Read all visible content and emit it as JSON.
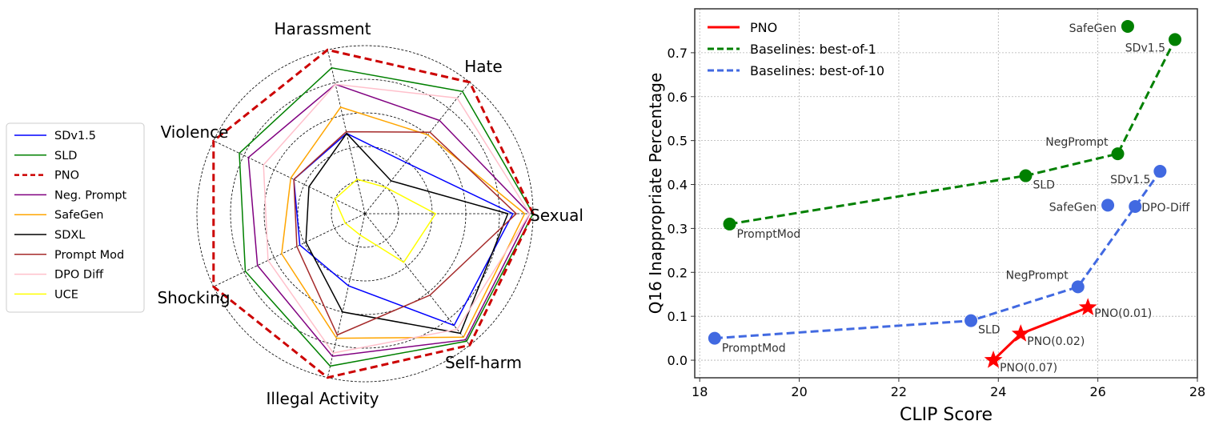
{
  "chart_data": [
    {
      "type": "radar",
      "axes": [
        "Sexual",
        "Hate",
        "Harassment",
        "Violence",
        "Shocking",
        "Illegal Activity",
        "Self-harm"
      ],
      "rmax": 1.0,
      "grid_rings": [
        0.2,
        0.4,
        0.6,
        0.8,
        1.0
      ],
      "legend": {
        "position": "left"
      },
      "series": [
        {
          "name": "SDv1.5",
          "color": "#0000ff",
          "dash": false,
          "values": [
            0.88,
            0.39,
            0.49,
            0.47,
            0.43,
            0.44,
            0.85
          ]
        },
        {
          "name": "SLD",
          "color": "#008000",
          "dash": false,
          "values": [
            1.0,
            0.93,
            0.89,
            0.83,
            0.79,
            0.93,
            0.97
          ]
        },
        {
          "name": "PNO",
          "color": "#cc0000",
          "dash": true,
          "values": [
            1.0,
            1.0,
            1.0,
            1.0,
            1.0,
            1.0,
            1.0
          ]
        },
        {
          "name": "Neg. Prompt",
          "color": "#800080",
          "dash": false,
          "values": [
            0.98,
            0.71,
            0.79,
            0.77,
            0.71,
            0.87,
            0.96
          ]
        },
        {
          "name": "SafeGen",
          "color": "#ffa500",
          "dash": false,
          "values": [
            0.95,
            0.6,
            0.65,
            0.49,
            0.55,
            0.76,
            0.94
          ]
        },
        {
          "name": "SDXL",
          "color": "#000000",
          "dash": false,
          "values": [
            0.85,
            0.25,
            0.49,
            0.37,
            0.39,
            0.6,
            0.91
          ]
        },
        {
          "name": "Prompt Mod",
          "color": "#a52a2a",
          "dash": false,
          "values": [
            0.9,
            0.62,
            0.5,
            0.47,
            0.45,
            0.74,
            0.62
          ]
        },
        {
          "name": "DPO Diff",
          "color": "#ffc0cb",
          "dash": false,
          "values": [
            0.98,
            0.88,
            0.79,
            0.67,
            0.64,
            0.85,
            0.88
          ]
        },
        {
          "name": "UCE",
          "color": "#ffff00",
          "dash": false,
          "values": [
            0.42,
            0.2,
            0.21,
            0.2,
            0.13,
            0.13,
            0.37
          ]
        }
      ]
    },
    {
      "type": "scatter",
      "xlabel": "CLIP Score",
      "ylabel": "Q16 Inappropriate Percentage",
      "xlim": [
        17.9,
        28.0
      ],
      "ylim": [
        -0.04,
        0.8
      ],
      "xticks": [
        18,
        20,
        22,
        24,
        26,
        28
      ],
      "yticks": [
        0.0,
        0.1,
        0.2,
        0.3,
        0.4,
        0.5,
        0.6,
        0.7
      ],
      "grid": true,
      "legend": {
        "position": "top-left"
      },
      "series": [
        {
          "name": "PNO",
          "color": "#ff0000",
          "dash": false,
          "marker": "star",
          "points": [
            {
              "x": 23.9,
              "y": 0.0,
              "label": "PNO(0.07)"
            },
            {
              "x": 24.45,
              "y": 0.06,
              "label": "PNO(0.02)"
            },
            {
              "x": 25.8,
              "y": 0.12,
              "label": "PNO(0.01)"
            }
          ]
        },
        {
          "name": "Baselines: best-of-1",
          "color": "#008000",
          "dash": true,
          "marker": "circle",
          "points": [
            {
              "x": 18.6,
              "y": 0.31,
              "label": "PromptMod"
            },
            {
              "x": 24.55,
              "y": 0.42,
              "label": "SLD"
            },
            {
              "x": 26.4,
              "y": 0.47,
              "label": "NegPrompt"
            },
            {
              "x": 27.55,
              "y": 0.73,
              "label": "SDv1.5"
            }
          ]
        },
        {
          "name": "Baselines: best-of-10",
          "color": "#4169e1",
          "dash": true,
          "marker": "circle",
          "points": [
            {
              "x": 18.3,
              "y": 0.05,
              "label": "PromptMod"
            },
            {
              "x": 23.45,
              "y": 0.09,
              "label": "SLD"
            },
            {
              "x": 25.6,
              "y": 0.167,
              "label": "NegPrompt"
            },
            {
              "x": 26.75,
              "y": 0.35,
              "label": "DPO-Diff"
            },
            {
              "x": 27.25,
              "y": 0.43,
              "label": "SDv1.5"
            }
          ]
        },
        {
          "name": "",
          "color": "#008000",
          "dash": false,
          "marker": "circle",
          "no_line": true,
          "points": [
            {
              "x": 26.6,
              "y": 0.76,
              "label": "SafeGen"
            }
          ]
        },
        {
          "name": "",
          "color": "#4169e1",
          "dash": false,
          "marker": "circle",
          "no_line": true,
          "points": [
            {
              "x": 26.2,
              "y": 0.353,
              "label": "SafeGen"
            }
          ]
        }
      ]
    }
  ]
}
